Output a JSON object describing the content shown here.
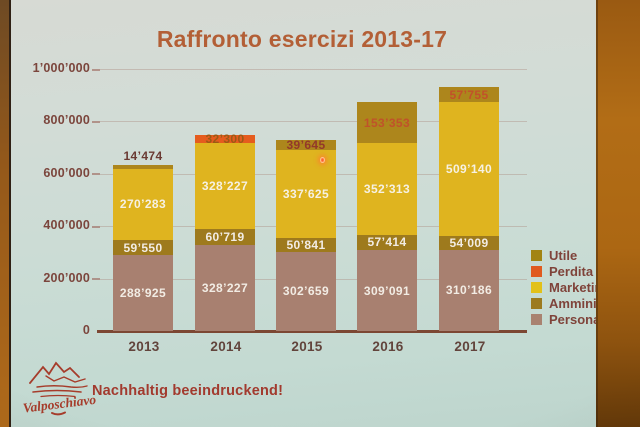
{
  "slide": {
    "title": "Raffronto esercizi 2013-17",
    "caption": "Nachhaltig beeindruckend!",
    "logo_text": "Valposchiavo"
  },
  "colors": {
    "title": "#b35f36",
    "axis_text": "#7b453c",
    "caption_text": "#a23a2e",
    "wall_orange": "#b26d16",
    "slide_background": "#cbdcd5"
  },
  "chart_data": {
    "type": "bar",
    "stacked": true,
    "title": "Raffronto esercizi 2013-17",
    "categories": [
      "2013",
      "2014",
      "2015",
      "2016",
      "2017"
    ],
    "ylim": [
      0,
      1000000
    ],
    "grid": true,
    "legend_position": "right",
    "y_ticks": [
      {
        "value": 0,
        "label": "0"
      },
      {
        "value": 200000,
        "label": "200’000"
      },
      {
        "value": 400000,
        "label": "400’000"
      },
      {
        "value": 600000,
        "label": "600’000"
      },
      {
        "value": 800000,
        "label": "800’000"
      },
      {
        "value": 1000000,
        "label": "1’000’000"
      }
    ],
    "series": [
      {
        "name": "Personale",
        "color": "#a88070",
        "label_color": "#f2ece4",
        "values": [
          288925,
          328227,
          302659,
          309091,
          310186
        ],
        "labels": [
          "288’925",
          "328’227",
          "302’659",
          "309’091",
          "310’186"
        ]
      },
      {
        "name": "Amministrazione",
        "color": "#9e7a1d",
        "label_color": "#f2ece4",
        "values": [
          59550,
          60719,
          50841,
          57414,
          54009
        ],
        "labels": [
          "59’550",
          "60’719",
          "50’841",
          "57’414",
          "54’009"
        ]
      },
      {
        "name": "Marketing",
        "color": "#dfb41f",
        "label_color": "#f6f1e3",
        "values": [
          270283,
          328227,
          337625,
          352313,
          509140
        ],
        "labels": [
          "270’283",
          "328’227",
          "337’625",
          "352’313",
          "509’140"
        ]
      },
      {
        "name": "Utile",
        "color": "#ad861c",
        "label_color": "#c0522a",
        "values": [
          14474,
          0,
          39645,
          153353,
          57755
        ],
        "labels": [
          "14’474",
          "",
          "39’645",
          "153’353",
          "57’755"
        ],
        "label_colors": [
          "#6a3a33",
          "",
          "#93392a",
          "#c0522a",
          "#c2512a"
        ]
      },
      {
        "name": "Perdita",
        "color": "#e55c1e",
        "label_color": "#9c5a14",
        "values": [
          0,
          32300,
          0,
          0,
          0
        ],
        "labels": [
          "",
          "32’300",
          "",
          "",
          ""
        ],
        "label_colors": [
          "",
          "#9c5a14",
          "",
          "",
          ""
        ]
      }
    ],
    "legend": [
      {
        "label": "Utile",
        "color": "#a28413"
      },
      {
        "label": "Perdita",
        "color": "#e05a1f"
      },
      {
        "label": "Marketing",
        "color": "#e2c119"
      },
      {
        "label": "Amministrazione",
        "color": "#9c7a1e"
      },
      {
        "label": "Personale",
        "color": "#a98270"
      }
    ]
  }
}
